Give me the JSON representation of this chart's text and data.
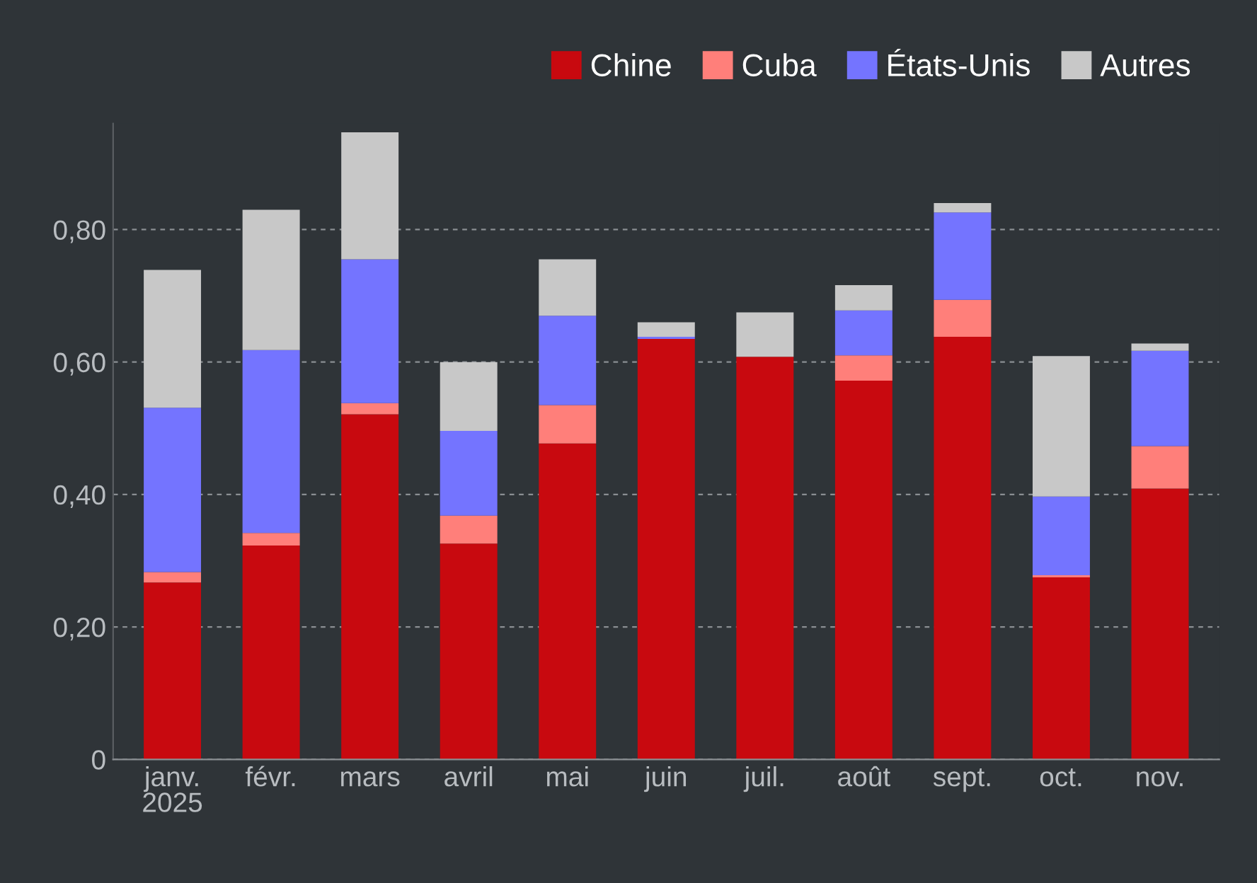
{
  "chart_data": {
    "type": "bar",
    "stacked": true,
    "categories": [
      "janv.\n2025",
      "févr.",
      "mars",
      "avril",
      "mai",
      "juin",
      "juil.",
      "août",
      "sept.",
      "oct.",
      "nov."
    ],
    "series": [
      {
        "name": "Chine",
        "color": "#c8090f",
        "values": [
          0.267,
          0.323,
          0.521,
          0.326,
          0.477,
          0.635,
          0.608,
          0.572,
          0.638,
          0.275,
          0.409
        ]
      },
      {
        "name": "Cuba",
        "color": "#ff7f7a",
        "values": [
          0.016,
          0.019,
          0.017,
          0.042,
          0.058,
          0,
          0,
          0.038,
          0.056,
          0.003,
          0.064
        ]
      },
      {
        "name": "États-Unis",
        "color": "#7474ff",
        "values": [
          0.248,
          0.276,
          0.217,
          0.128,
          0.135,
          0.003,
          0,
          0.068,
          0.132,
          0.119,
          0.144
        ]
      },
      {
        "name": "Autres",
        "color": "#c8c8c8",
        "values": [
          0.208,
          0.212,
          0.192,
          0.104,
          0.085,
          0.022,
          0.067,
          0.038,
          0.014,
          0.212,
          0.011
        ]
      }
    ],
    "ylim": [
      0,
      0.96
    ],
    "yticks": [
      0,
      {
        "value": 0.2,
        "label": "0,20"
      },
      {
        "value": 0.4,
        "label": "0,40"
      },
      {
        "value": 0.6,
        "label": "0,60"
      },
      {
        "value": 0.8,
        "label": "0,80"
      }
    ],
    "grid": "y",
    "legend": "top right"
  }
}
